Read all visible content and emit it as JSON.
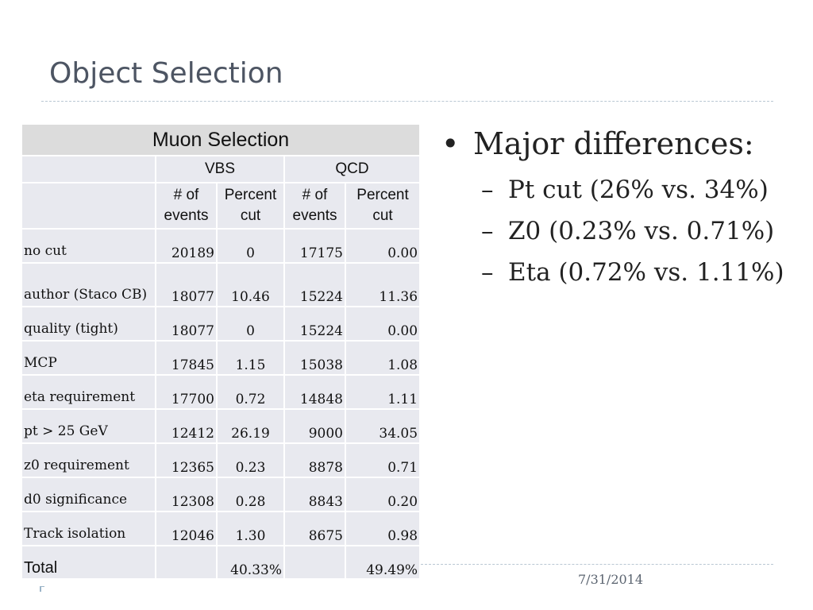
{
  "slide": {
    "title": "Object Selection",
    "footer_date": "7/31/2014"
  },
  "table": {
    "title": "Muon Selection",
    "groups": [
      "VBS",
      "QCD"
    ],
    "subheaders": [
      "# of events",
      "Percent cut",
      "# of events",
      "Percent cut"
    ],
    "rows": [
      [
        "no cut",
        "20189",
        "0",
        "17175",
        "0.00"
      ],
      [
        "author (Staco CB)",
        "18077",
        "10.46",
        "15224",
        "11.36"
      ],
      [
        "quality (tight)",
        "18077",
        "0",
        "15224",
        "0.00"
      ],
      [
        "MCP",
        "17845",
        "1.15",
        "15038",
        "1.08"
      ],
      [
        "eta requirement",
        "17700",
        "0.72",
        "14848",
        "1.11"
      ],
      [
        "pt > 25 GeV",
        "12412",
        "26.19",
        "9000",
        "34.05"
      ],
      [
        "z0 requirement",
        "12365",
        "0.23",
        "8878",
        "0.71"
      ],
      [
        "d0 significance",
        "12308",
        "0.28",
        "8843",
        "0.20"
      ],
      [
        "Track isolation",
        "12046",
        "1.30",
        "8675",
        "0.98"
      ]
    ],
    "total": {
      "label": "Total",
      "vbs_percent": "40.33%",
      "qcd_percent": "49.49%"
    }
  },
  "bullets": {
    "main": "Major differences:",
    "items": [
      "Pt cut (26% vs. 34%)",
      "Z0 (0.23% vs. 0.71%)",
      "Eta (0.72% vs. 1.11%)"
    ]
  }
}
